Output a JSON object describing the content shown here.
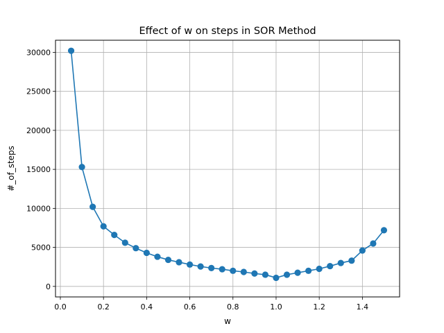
{
  "chart_data": {
    "type": "line",
    "title": "Effect of w on steps in SOR Method",
    "xlabel": "w",
    "ylabel": "#_of_steps",
    "xlim": [
      -0.0225,
      1.5725
    ],
    "ylim": [
      -1350,
      31550
    ],
    "grid": true,
    "x_ticks": [
      0.0,
      0.2,
      0.4,
      0.6,
      0.8,
      1.0,
      1.2,
      1.4
    ],
    "x_tick_labels": [
      "0.0",
      "0.2",
      "0.4",
      "0.6",
      "0.8",
      "1.0",
      "1.2",
      "1.4"
    ],
    "y_ticks": [
      0,
      5000,
      10000,
      15000,
      20000,
      25000,
      30000
    ],
    "y_tick_labels": [
      "0",
      "5000",
      "10000",
      "15000",
      "20000",
      "25000",
      "30000"
    ],
    "series": [
      {
        "color": "#1f77b4",
        "marker": "circle",
        "x": [
          0.05,
          0.1,
          0.15,
          0.2,
          0.25,
          0.3,
          0.35,
          0.4,
          0.45,
          0.5,
          0.55,
          0.6,
          0.65,
          0.7,
          0.75,
          0.8,
          0.85,
          0.9,
          0.95,
          1.0,
          1.05,
          1.1,
          1.15,
          1.2,
          1.25,
          1.3,
          1.35,
          1.4,
          1.45,
          1.5
        ],
        "y": [
          30200,
          15300,
          10200,
          7700,
          6600,
          5600,
          4900,
          4300,
          3800,
          3400,
          3100,
          2800,
          2550,
          2350,
          2200,
          2000,
          1850,
          1650,
          1500,
          1100,
          1500,
          1750,
          2000,
          2250,
          2600,
          3000,
          3300,
          4600,
          5500,
          7200
        ]
      }
    ]
  }
}
